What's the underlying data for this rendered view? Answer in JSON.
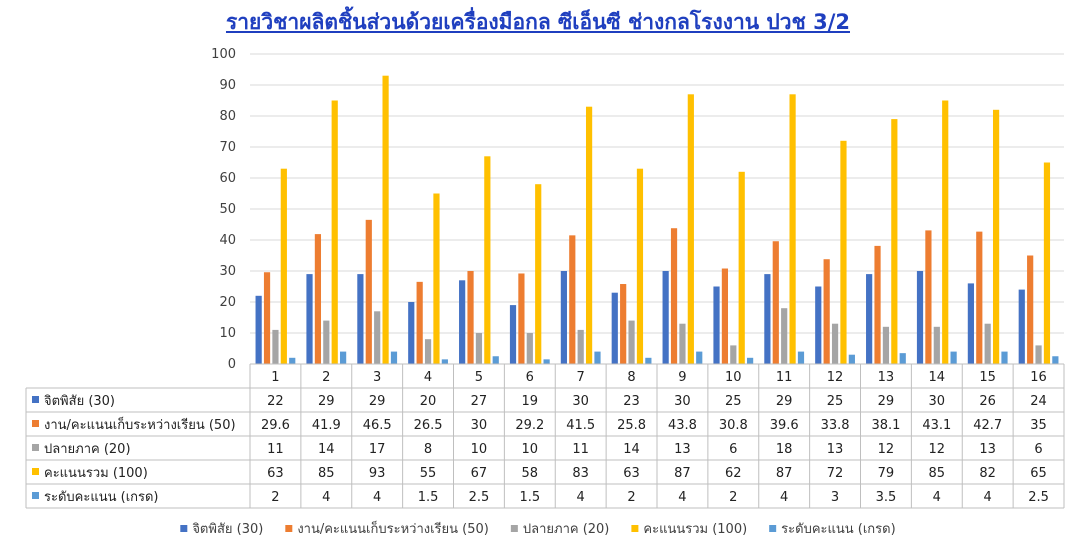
{
  "chart_data": {
    "type": "bar",
    "title": "รายวิชาผลิตชิ้นส่วนด้วยเครื่องมือกล ซีเอ็นซี ช่างกลโรงงาน ปวช 3/2",
    "xlabel": "",
    "ylabel": "",
    "ylim": [
      0,
      100
    ],
    "yticks": [
      0,
      10,
      20,
      30,
      40,
      50,
      60,
      70,
      80,
      90,
      100
    ],
    "grid": true,
    "legend_position": "bottom",
    "data_table": true,
    "categories": [
      "1",
      "2",
      "3",
      "4",
      "5",
      "6",
      "7",
      "8",
      "9",
      "10",
      "11",
      "12",
      "13",
      "14",
      "15",
      "16"
    ],
    "series": [
      {
        "name": "จิตพิสัย (30)",
        "color": "#4472c4",
        "values": [
          22,
          29,
          29,
          20,
          27,
          19,
          30,
          23,
          30,
          25,
          29,
          25,
          29,
          30,
          26,
          24
        ]
      },
      {
        "name": "งาน/คะแนนเก็บระหว่างเรียน (50)",
        "color": "#ed7d31",
        "values": [
          29.6,
          41.9,
          46.5,
          26.5,
          30,
          29.2,
          41.5,
          25.8,
          43.8,
          30.8,
          39.6,
          33.8,
          38.1,
          43.1,
          42.7,
          35
        ]
      },
      {
        "name": "ปลายภาค (20)",
        "color": "#a5a5a5",
        "values": [
          11,
          14,
          17,
          8,
          10,
          10,
          11,
          14,
          13,
          6,
          18,
          13,
          12,
          12,
          13,
          6
        ]
      },
      {
        "name": "คะแนนรวม (100)",
        "color": "#ffc000",
        "values": [
          63,
          85,
          93,
          55,
          67,
          58,
          83,
          63,
          87,
          62,
          87,
          72,
          79,
          85,
          82,
          65
        ]
      },
      {
        "name": "ระดับคะแนน (เกรด)",
        "color": "#5b9bd5",
        "values": [
          2,
          4,
          4,
          1.5,
          2.5,
          1.5,
          4,
          2,
          4,
          2,
          4,
          3,
          3.5,
          4,
          4,
          2.5
        ]
      }
    ]
  }
}
